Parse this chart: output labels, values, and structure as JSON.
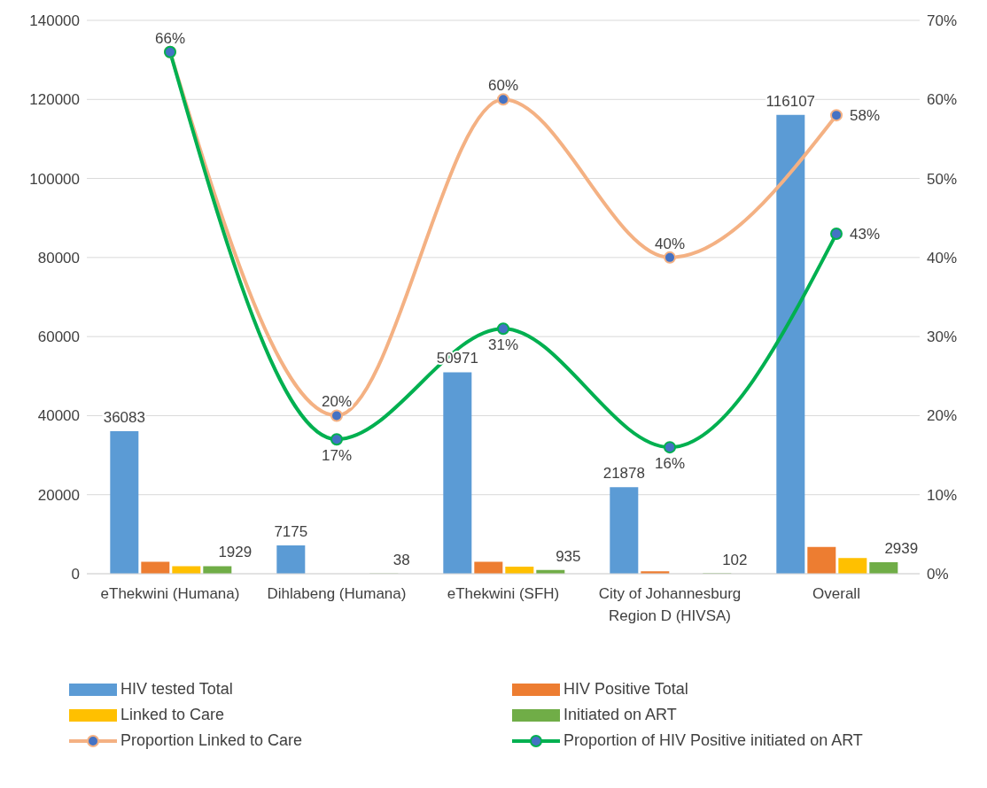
{
  "chart_data": {
    "type": "bar",
    "categories": [
      "eThekwini (Humana)",
      "Dihlabeng (Humana)",
      "eThekwini (SFH)",
      "City of Johannesburg Region D (HIVSA)",
      "Overall"
    ],
    "series": [
      {
        "name": "HIV tested Total",
        "color": "#5b9bd5",
        "values": [
          36083,
          7175,
          50971,
          21878,
          116107
        ],
        "value_labels": [
          "36083",
          "7175",
          "50971",
          "21878",
          "116107"
        ]
      },
      {
        "name": "HIV Positive Total",
        "color": "#ed7d31",
        "values": [
          3000,
          null,
          3000,
          600,
          6800
        ]
      },
      {
        "name": "Linked to Care",
        "color": "#ffc000",
        "values": [
          1900,
          null,
          1800,
          null,
          4000
        ]
      },
      {
        "name": "Initiated on ART",
        "color": "#70ad47",
        "values": [
          1929,
          38,
          935,
          102,
          2939
        ],
        "value_labels": [
          "1929",
          "38",
          "935",
          "102",
          "2939"
        ]
      },
      {
        "name": "Proportion  Linked to Care",
        "type": "line",
        "axis": "y2",
        "color": "#f4b183",
        "values": [
          66,
          20,
          60,
          40,
          58
        ],
        "value_labels": [
          null,
          "20%",
          "60%",
          "40%",
          "58%"
        ]
      },
      {
        "name": "Proportion of HIV Positive initiated on ART",
        "type": "line",
        "axis": "y2",
        "color": "#00b050",
        "values": [
          66,
          17,
          31,
          16,
          43
        ],
        "value_labels": [
          "66%",
          "17%",
          "31%",
          "16%",
          "43%"
        ]
      }
    ],
    "ylim": [
      0,
      140000
    ],
    "yticks": [
      0,
      20000,
      40000,
      60000,
      80000,
      100000,
      120000,
      140000
    ],
    "y2lim": [
      0,
      70
    ],
    "y2ticks": [
      {
        "value": 0,
        "label": "0%"
      },
      {
        "value": 10,
        "label": "10%"
      },
      {
        "value": 20,
        "label": "20%"
      },
      {
        "value": 30,
        "label": "30%"
      },
      {
        "value": 40,
        "label": "40%"
      },
      {
        "value": 50,
        "label": "50%"
      },
      {
        "value": 60,
        "label": "60%"
      },
      {
        "value": 70,
        "label": "70%"
      }
    ],
    "grid": "y",
    "legend": "bottom",
    "marker": "circle",
    "line_style": "solid"
  }
}
